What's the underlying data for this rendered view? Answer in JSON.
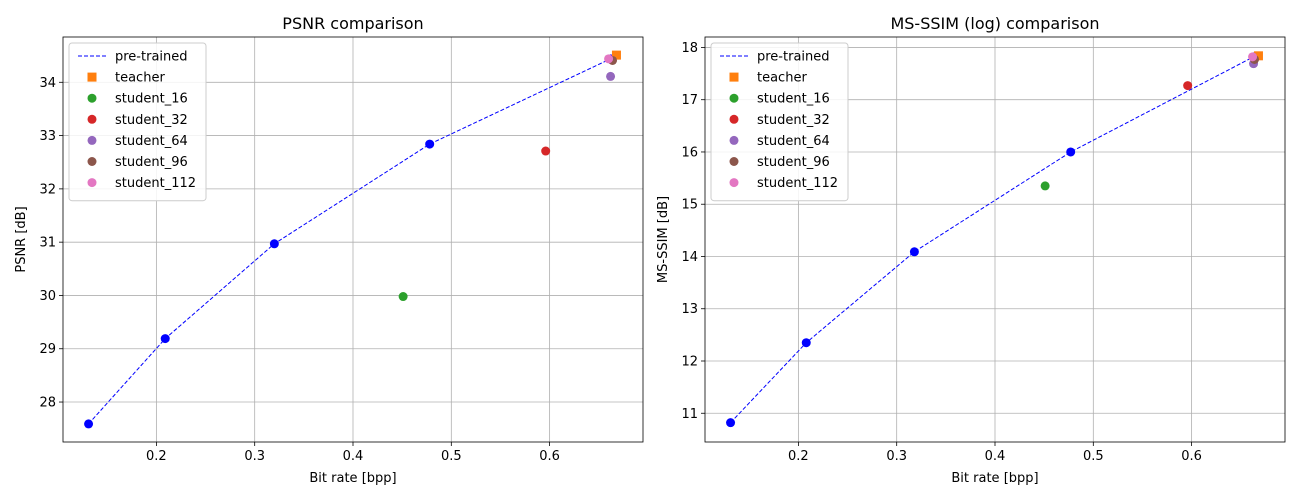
{
  "chart_data": [
    {
      "type": "scatter",
      "title": "PSNR comparison",
      "xlabel": "Bit rate [bpp]",
      "ylabel": "PSNR [dB]",
      "xlim": [
        0.105,
        0.695
      ],
      "ylim": [
        27.25,
        34.85
      ],
      "xticks": [
        0.2,
        0.3,
        0.4,
        0.5,
        0.6
      ],
      "yticks": [
        28,
        29,
        30,
        31,
        32,
        33,
        34
      ],
      "grid": true,
      "legend": "top-left",
      "series": [
        {
          "name": "pre-trained",
          "kind": "line",
          "color": "#0000ff",
          "x": [
            0.131,
            0.209,
            0.32,
            0.478,
            0.662
          ],
          "y": [
            27.59,
            29.19,
            30.97,
            32.84,
            34.44
          ]
        },
        {
          "name": "teacher",
          "kind": "square",
          "color": "#ff7f0e",
          "x": [
            0.668
          ],
          "y": [
            34.51
          ]
        },
        {
          "name": "student_16",
          "kind": "dot",
          "color": "#2ca02c",
          "x": [
            0.451
          ],
          "y": [
            29.98
          ]
        },
        {
          "name": "student_32",
          "kind": "dot",
          "color": "#d62728",
          "x": [
            0.596
          ],
          "y": [
            32.71
          ]
        },
        {
          "name": "student_64",
          "kind": "dot",
          "color": "#9467bd",
          "x": [
            0.662
          ],
          "y": [
            34.11
          ]
        },
        {
          "name": "student_96",
          "kind": "dot",
          "color": "#8c564b",
          "x": [
            0.664
          ],
          "y": [
            34.41
          ]
        },
        {
          "name": "student_112",
          "kind": "dot",
          "color": "#e377c2",
          "x": [
            0.66
          ],
          "y": [
            34.44
          ]
        }
      ]
    },
    {
      "type": "scatter",
      "title": "MS-SSIM (log) comparison",
      "xlabel": "Bit rate [bpp]",
      "ylabel": "MS-SSIM [dB]",
      "xlim": [
        0.105,
        0.695
      ],
      "ylim": [
        10.45,
        18.2
      ],
      "xticks": [
        0.2,
        0.3,
        0.4,
        0.5,
        0.6
      ],
      "yticks": [
        11,
        12,
        13,
        14,
        15,
        16,
        17,
        18
      ],
      "grid": true,
      "legend": "top-left",
      "series": [
        {
          "name": "pre-trained",
          "kind": "line",
          "color": "#0000ff",
          "x": [
            0.131,
            0.208,
            0.318,
            0.477,
            0.663
          ],
          "y": [
            10.82,
            12.35,
            14.09,
            16.0,
            17.82
          ]
        },
        {
          "name": "teacher",
          "kind": "square",
          "color": "#ff7f0e",
          "x": [
            0.668
          ],
          "y": [
            17.84
          ]
        },
        {
          "name": "student_16",
          "kind": "dot",
          "color": "#2ca02c",
          "x": [
            0.451
          ],
          "y": [
            15.35
          ]
        },
        {
          "name": "student_32",
          "kind": "dot",
          "color": "#d62728",
          "x": [
            0.596
          ],
          "y": [
            17.27
          ]
        },
        {
          "name": "student_64",
          "kind": "dot",
          "color": "#9467bd",
          "x": [
            0.663
          ],
          "y": [
            17.69
          ]
        },
        {
          "name": "student_96",
          "kind": "dot",
          "color": "#8c564b",
          "x": [
            0.664
          ],
          "y": [
            17.77
          ]
        },
        {
          "name": "student_112",
          "kind": "dot",
          "color": "#e377c2",
          "x": [
            0.662
          ],
          "y": [
            17.82
          ]
        }
      ]
    }
  ]
}
